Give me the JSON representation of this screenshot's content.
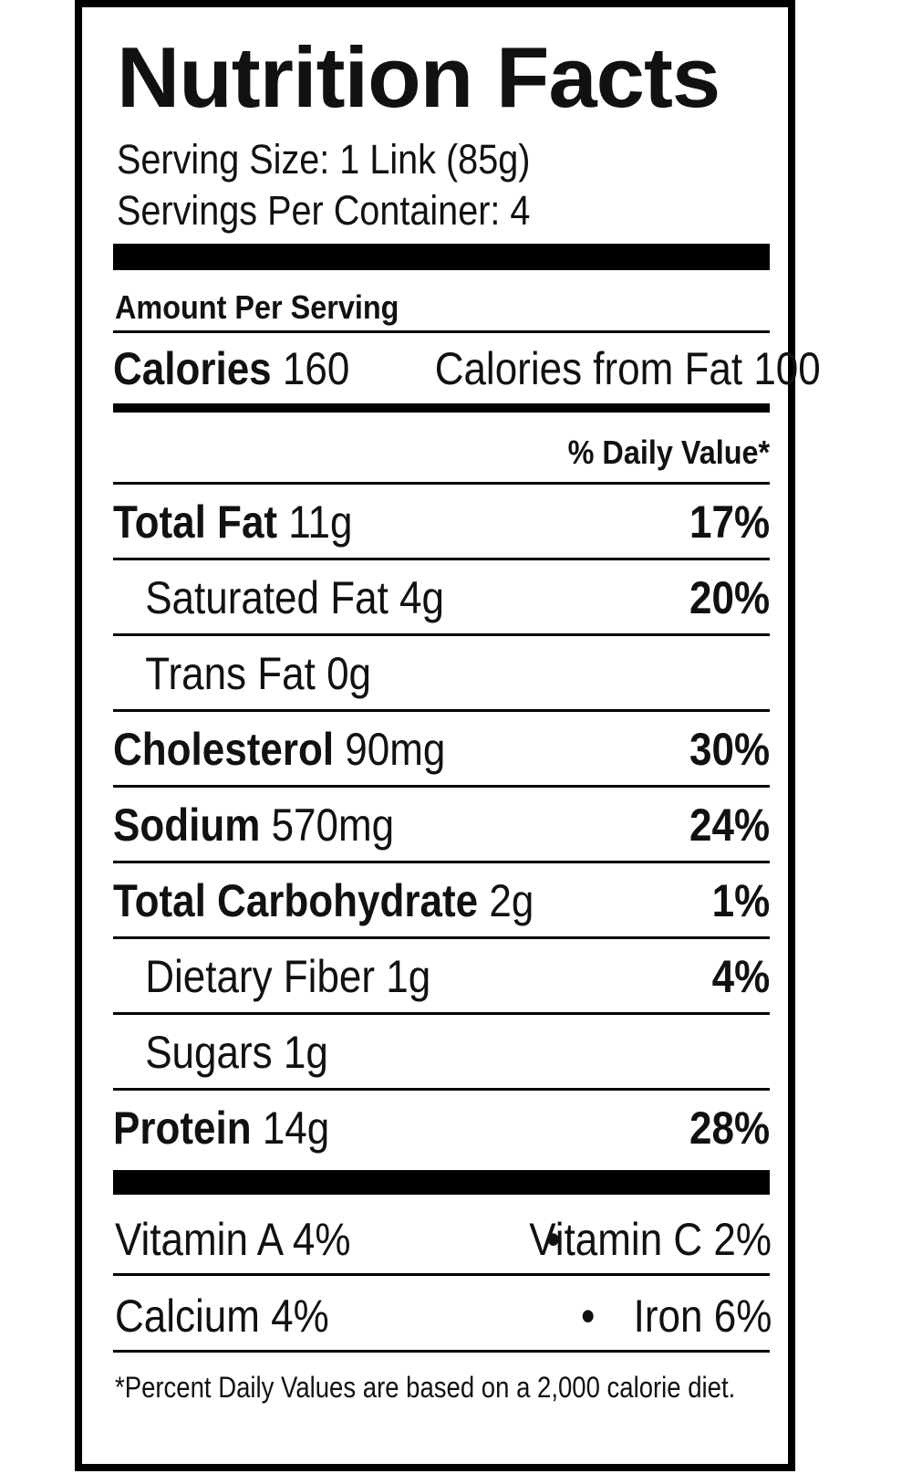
{
  "title": "Nutrition Facts",
  "serving_size": "Serving Size: 1 Link (85g)",
  "servings_per_container": "Servings Per Container: 4",
  "amount_per_serving": "Amount Per Serving",
  "calories": {
    "label": "Calories",
    "value": "160",
    "from_fat": "Calories from Fat 100"
  },
  "daily_value_header": "% Daily Value*",
  "nutrients": [
    {
      "name": "Total Fat",
      "amount": "11g",
      "dv": "17%"
    },
    {
      "name": "Saturated Fat",
      "amount": "4g",
      "dv": "20%"
    },
    {
      "name": "Trans Fat",
      "amount": "0g",
      "dv": ""
    },
    {
      "name": "Cholesterol",
      "amount": "90mg",
      "dv": "30%"
    },
    {
      "name": "Sodium",
      "amount": "570mg",
      "dv": "24%"
    },
    {
      "name": "Total Carbohydrate",
      "amount": "2g",
      "dv": "1%"
    },
    {
      "name": "Dietary Fiber",
      "amount": "1g",
      "dv": "4%"
    },
    {
      "name": "Sugars",
      "amount": "1g",
      "dv": ""
    },
    {
      "name": "Protein",
      "amount": "14g",
      "dv": "28%"
    }
  ],
  "vitamins": {
    "vitamin_a": "Vitamin A 4%",
    "vitamin_c": "Vitamin C 2%",
    "calcium": "Calcium 4%",
    "iron": "Iron 6%",
    "separator": "•"
  },
  "footnote": "*Percent Daily Values are based on a 2,000 calorie diet."
}
